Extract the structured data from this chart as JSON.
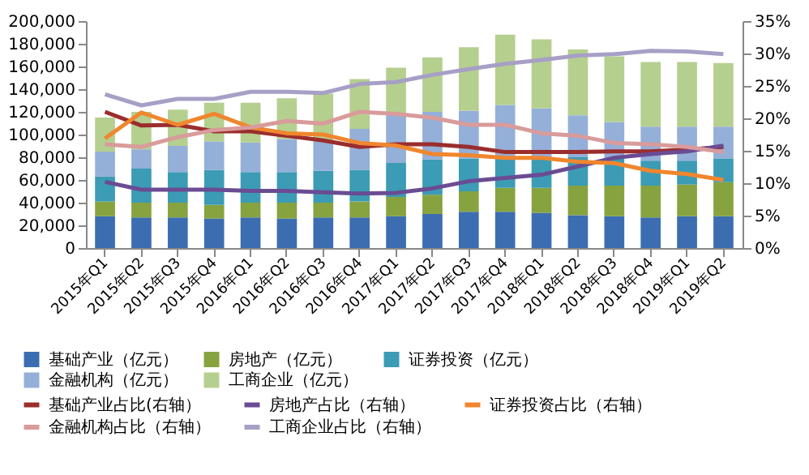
{
  "chart_data": {
    "type": "bar",
    "stacked": true,
    "categories": [
      "2015年Q1",
      "2015年Q2",
      "2015年Q3",
      "2015年Q4",
      "2016年Q1",
      "2016年Q2",
      "2016年Q3",
      "2016年Q4",
      "2017年Q1",
      "2017年Q2",
      "2017年Q3",
      "2017年Q4",
      "2018年Q1",
      "2018年Q2",
      "2018年Q3",
      "2018年Q4",
      "2019年Q1",
      "2019年Q2"
    ],
    "series": [
      {
        "name": "基础产业（亿元）",
        "color": "#3c6db0",
        "values": [
          28000,
          27000,
          27000,
          26000,
          27000,
          26000,
          27000,
          27000,
          28000,
          30000,
          32000,
          32000,
          31000,
          29000,
          28000,
          27000,
          28000,
          28000
        ]
      },
      {
        "name": "房地产（亿元）",
        "color": "#86a33f",
        "values": [
          13000,
          13000,
          13000,
          12000,
          13000,
          14000,
          13000,
          14000,
          17000,
          17000,
          18000,
          21000,
          22000,
          26000,
          27000,
          28000,
          28000,
          30000
        ]
      },
      {
        "name": "证券投资（亿元）",
        "color": "#3c9bb5",
        "values": [
          22000,
          30000,
          27000,
          31000,
          27000,
          27000,
          28000,
          28000,
          30000,
          31000,
          29000,
          26000,
          26000,
          25000,
          24000,
          22000,
          21000,
          21000
        ]
      },
      {
        "name": "金融机构（亿元）",
        "color": "#94afd8",
        "values": [
          22000,
          17000,
          23000,
          25000,
          26000,
          29000,
          27000,
          36000,
          43000,
          42000,
          42000,
          47000,
          44000,
          37000,
          32000,
          30000,
          30000,
          28000
        ]
      },
      {
        "name": "工商企业（亿元）",
        "color": "#b5cf8f",
        "values": [
          30000,
          33000,
          32000,
          34000,
          35000,
          36000,
          41000,
          44000,
          41000,
          48000,
          56000,
          62000,
          61000,
          58000,
          58000,
          57000,
          57000,
          56000
        ]
      },
      {
        "name": "基础产业占比(右轴）",
        "type": "line",
        "axis": "y2",
        "color": "#9b2d2d",
        "values": [
          21.0,
          18.9,
          19.0,
          18.0,
          18.0,
          17.3,
          16.6,
          15.6,
          16.0,
          16.0,
          15.6,
          14.8,
          14.8,
          14.8,
          14.9,
          14.9,
          15.2,
          15.6
        ]
      },
      {
        "name": "房地产占比（右轴）",
        "type": "line",
        "axis": "y2",
        "color": "#6a4c93",
        "values": [
          10.2,
          9.0,
          9.0,
          9.0,
          8.8,
          8.8,
          8.6,
          8.4,
          8.5,
          9.2,
          10.3,
          10.8,
          11.3,
          12.6,
          13.9,
          14.5,
          14.9,
          15.8
        ]
      },
      {
        "name": "证券投资占比（右轴）",
        "type": "line",
        "axis": "y2",
        "color": "#f0862e",
        "values": [
          16.9,
          20.9,
          19.0,
          20.7,
          18.6,
          17.7,
          17.5,
          16.2,
          15.8,
          14.5,
          14.3,
          13.9,
          13.9,
          13.3,
          13.1,
          11.9,
          11.4,
          10.5
        ]
      },
      {
        "name": "金融机构占比（右轴）",
        "type": "line",
        "axis": "y2",
        "color": "#d99b9b",
        "values": [
          16.0,
          15.6,
          17.1,
          18.2,
          18.6,
          19.6,
          19.2,
          21.0,
          20.7,
          20.1,
          19.0,
          19.0,
          17.7,
          17.3,
          16.2,
          16.0,
          15.6,
          14.8
        ]
      },
      {
        "name": "工商企业占比（右轴）",
        "type": "line",
        "axis": "y2",
        "color": "#a79fc6",
        "values": [
          23.7,
          22.0,
          23.0,
          23.0,
          24.1,
          24.1,
          23.9,
          25.3,
          25.6,
          26.7,
          27.6,
          28.4,
          29.0,
          29.7,
          29.9,
          30.4,
          30.3,
          29.9
        ]
      }
    ],
    "ylim": [
      0,
      200000
    ],
    "yticks": [
      {
        "value": 0,
        "label": "0"
      },
      {
        "value": 20000,
        "label": "20,000"
      },
      {
        "value": 40000,
        "label": "40,000"
      },
      {
        "value": 60000,
        "label": "60,000"
      },
      {
        "value": 80000,
        "label": "80,000"
      },
      {
        "value": 100000,
        "label": "100,000"
      },
      {
        "value": 120000,
        "label": "120,000"
      },
      {
        "value": 140000,
        "label": "140,000"
      },
      {
        "value": 160000,
        "label": "160,000"
      },
      {
        "value": 180000,
        "label": "180,000"
      },
      {
        "value": 200000,
        "label": "200,000"
      }
    ],
    "y2lim": [
      0,
      35
    ],
    "y2ticks": [
      {
        "value": 0,
        "label": "0%"
      },
      {
        "value": 5,
        "label": "5%"
      },
      {
        "value": 10,
        "label": "10%"
      },
      {
        "value": 15,
        "label": "15%"
      },
      {
        "value": 20,
        "label": "20%"
      },
      {
        "value": 25,
        "label": "25%"
      },
      {
        "value": 30,
        "label": "30%"
      },
      {
        "value": 35,
        "label": "35%"
      }
    ],
    "grid": false,
    "legend": "bottom",
    "line_style": "solid",
    "marker": "none"
  }
}
